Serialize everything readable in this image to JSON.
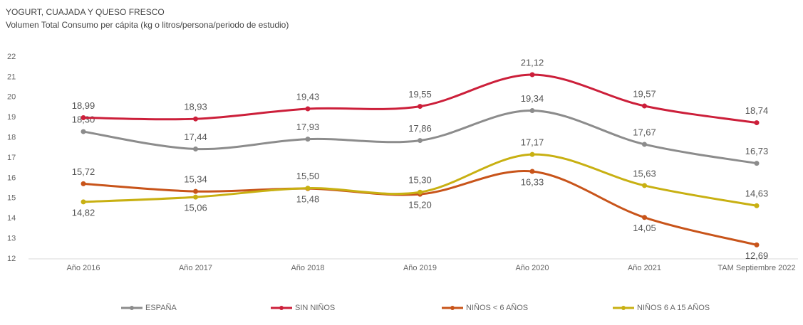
{
  "chart_data": {
    "type": "line",
    "title": "YOGURT, CUAJADA Y QUESO FRESCO",
    "subtitle": "Volumen Total Consumo per cápita (kg o litros/persona/periodo de estudio)",
    "categories": [
      "Año 2016",
      "Año 2017",
      "Año 2018",
      "Año 2019",
      "Año 2020",
      "Año 2021",
      "TAM Septiembre 2022"
    ],
    "ylim": [
      12,
      22
    ],
    "yticks": [
      12,
      13,
      14,
      15,
      16,
      17,
      18,
      19,
      20,
      21,
      22
    ],
    "legend": "bottom",
    "series": [
      {
        "name": "ESPAÑA",
        "color": "#8c8c8c",
        "values": [
          18.3,
          17.44,
          17.93,
          17.86,
          19.34,
          17.67,
          16.73
        ],
        "value_labels": [
          "18,30",
          "17,44",
          "17,93",
          "17,86",
          "19,34",
          "17,67",
          "16,73"
        ]
      },
      {
        "name": "SIN NIÑOS",
        "color": "#cc1f3a",
        "values": [
          18.99,
          18.93,
          19.43,
          19.55,
          21.12,
          19.57,
          18.74
        ],
        "value_labels": [
          "18,99",
          "18,93",
          "19,43",
          "19,55",
          "21,12",
          "19,57",
          "18,74"
        ]
      },
      {
        "name": "NIÑOS < 6 AÑOS",
        "color": "#c8541a",
        "values": [
          15.72,
          15.34,
          15.48,
          15.2,
          16.33,
          14.05,
          12.69
        ],
        "value_labels": [
          "15,72",
          "15,34",
          "15,48",
          "15,20",
          "16,33",
          "14,05",
          "12,69"
        ]
      },
      {
        "name": "NIÑOS 6 A 15 AÑOS",
        "color": "#c8b012",
        "values": [
          14.82,
          15.06,
          15.5,
          15.3,
          17.17,
          15.63,
          14.63
        ],
        "value_labels": [
          "14,82",
          "15,06",
          "15,50",
          "15,30",
          "17,17",
          "15,63",
          "14,63"
        ]
      }
    ]
  }
}
